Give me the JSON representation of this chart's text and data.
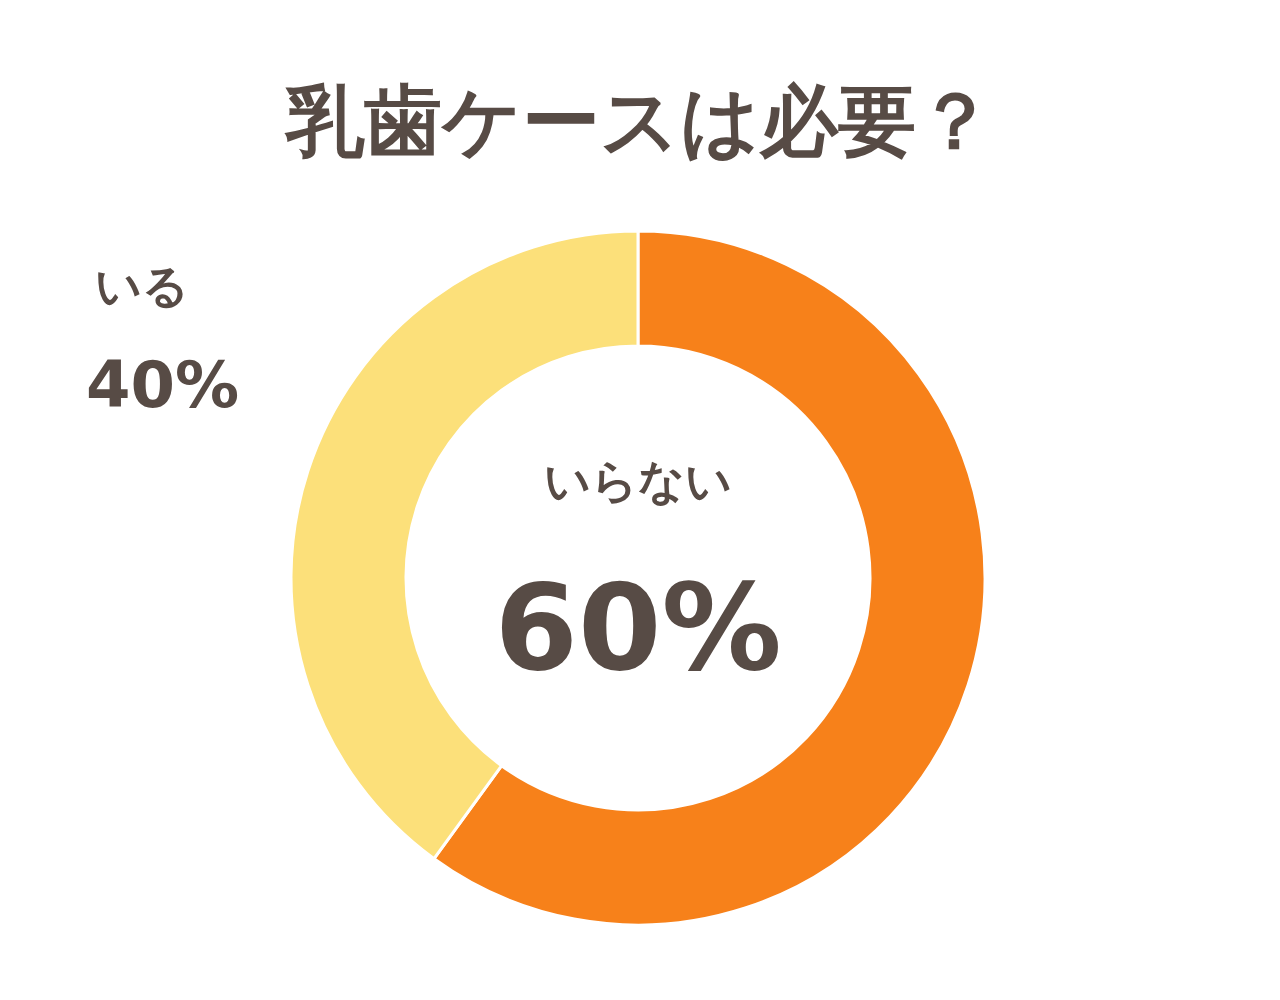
{
  "chart_data": {
    "type": "donut",
    "title": "乳歯ケースは必要？",
    "categories": [
      "いらない",
      "いる"
    ],
    "values": [
      60,
      40
    ],
    "colors": [
      "#f7811a",
      "#fce07a"
    ],
    "value_labels": [
      "60%",
      "40%"
    ]
  }
}
